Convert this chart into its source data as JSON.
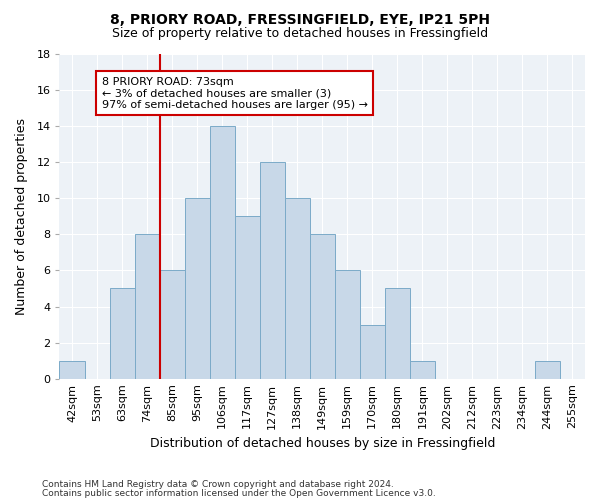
{
  "title1": "8, PRIORY ROAD, FRESSINGFIELD, EYE, IP21 5PH",
  "title2": "Size of property relative to detached houses in Fressingfield",
  "xlabel": "Distribution of detached houses by size in Fressingfield",
  "ylabel": "Number of detached properties",
  "footnote1": "Contains HM Land Registry data © Crown copyright and database right 2024.",
  "footnote2": "Contains public sector information licensed under the Open Government Licence v3.0.",
  "bar_labels": [
    "42sqm",
    "53sqm",
    "63sqm",
    "74sqm",
    "85sqm",
    "95sqm",
    "106sqm",
    "117sqm",
    "127sqm",
    "138sqm",
    "149sqm",
    "159sqm",
    "170sqm",
    "180sqm",
    "191sqm",
    "202sqm",
    "212sqm",
    "223sqm",
    "234sqm",
    "244sqm",
    "255sqm"
  ],
  "bar_values": [
    1,
    0,
    5,
    8,
    6,
    10,
    14,
    9,
    12,
    10,
    8,
    6,
    3,
    5,
    1,
    0,
    0,
    0,
    0,
    1,
    0
  ],
  "bar_color": "#c8d8e8",
  "bar_edge_color": "#7baac8",
  "ylim": [
    0,
    18
  ],
  "yticks": [
    0,
    2,
    4,
    6,
    8,
    10,
    12,
    14,
    16,
    18
  ],
  "redline_index": 3,
  "annotation_line1": "8 PRIORY ROAD: 73sqm",
  "annotation_line2": "← 3% of detached houses are smaller (3)",
  "annotation_line3": "97% of semi-detached houses are larger (95) →",
  "annotation_box_facecolor": "#ffffff",
  "annotation_box_edgecolor": "#cc0000",
  "redline_color": "#cc0000",
  "axes_bg": "#edf2f7",
  "grid_color": "#ffffff",
  "title_fontsize": 10,
  "subtitle_fontsize": 9,
  "ylabel_fontsize": 9,
  "xlabel_fontsize": 9,
  "tick_fontsize": 8,
  "annot_fontsize": 8
}
